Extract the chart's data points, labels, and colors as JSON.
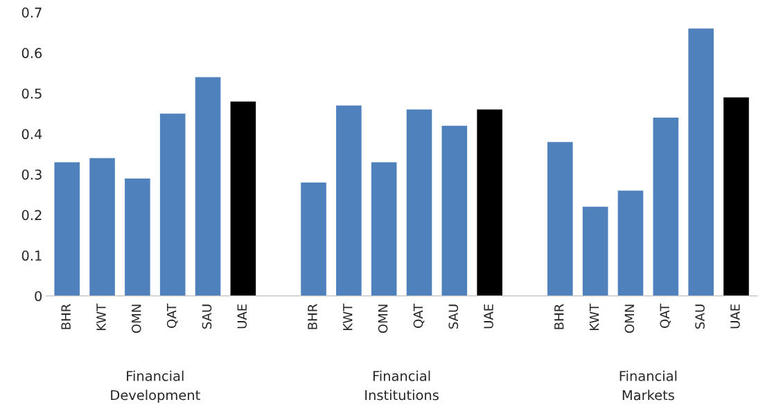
{
  "chart_data": {
    "type": "bar",
    "categories": [
      "BHR",
      "KWT",
      "OMN",
      "QAT",
      "SAU",
      "UAE",
      null,
      "BHR",
      "KWT",
      "OMN",
      "QAT",
      "SAU",
      "UAE",
      null,
      "BHR",
      "KWT",
      "OMN",
      "QAT",
      "SAU",
      "UAE"
    ],
    "values": [
      0.33,
      0.34,
      0.29,
      0.45,
      0.54,
      0.48,
      null,
      0.28,
      0.47,
      0.33,
      0.46,
      0.42,
      0.46,
      null,
      0.38,
      0.22,
      0.26,
      0.44,
      0.66,
      0.49
    ],
    "colors": [
      "#4f81bd",
      "#4f81bd",
      "#4f81bd",
      "#4f81bd",
      "#4f81bd",
      "#000000",
      null,
      "#4f81bd",
      "#4f81bd",
      "#4f81bd",
      "#4f81bd",
      "#4f81bd",
      "#000000",
      null,
      "#4f81bd",
      "#4f81bd",
      "#4f81bd",
      "#4f81bd",
      "#4f81bd",
      "#000000"
    ],
    "ylim": [
      0,
      0.7
    ],
    "yticks": [
      {
        "value": 0,
        "label": "0"
      },
      0.1,
      0.2,
      0.3,
      0.4,
      0.5,
      0.6,
      0.7
    ],
    "annotations": [
      "Financial\nDevelopment",
      "Financial\nInstitutions",
      "Financial\nMarkets"
    ],
    "grid": false,
    "legend": false
  }
}
